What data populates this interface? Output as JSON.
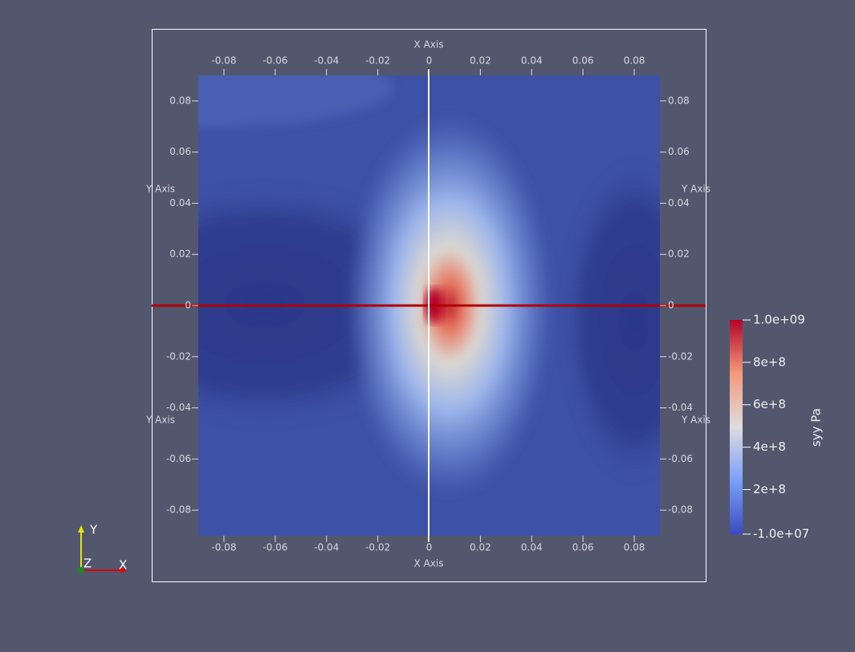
{
  "chart_data": {
    "type": "contour",
    "xlabel": "X Axis",
    "ylabel": "Y Axis",
    "xlim": [
      -0.09,
      0.09
    ],
    "ylim": [
      -0.09,
      0.09
    ],
    "xticks": [
      -0.08,
      -0.06,
      -0.04,
      -0.02,
      0,
      0.02,
      0.04,
      0.06,
      0.08
    ],
    "yticks": [
      -0.08,
      -0.06,
      -0.04,
      -0.02,
      0,
      0.02,
      0.04,
      0.06,
      0.08
    ],
    "colorbar": {
      "title": "syy Pa",
      "lim": [
        -10000000,
        1000000000
      ],
      "ticks": [
        {
          "value": 1000000000,
          "label": "1.0e+09"
        },
        {
          "value": 800000000,
          "label": "8e+8"
        },
        {
          "value": 600000000,
          "label": "6e+8"
        },
        {
          "value": 400000000,
          "label": "4e+8"
        },
        {
          "value": 200000000,
          "label": "2e+8"
        },
        {
          "value": -10000000,
          "label": "-1.0e+07"
        }
      ]
    },
    "triad": {
      "x": "X",
      "y": "Y",
      "z": "Z"
    }
  }
}
